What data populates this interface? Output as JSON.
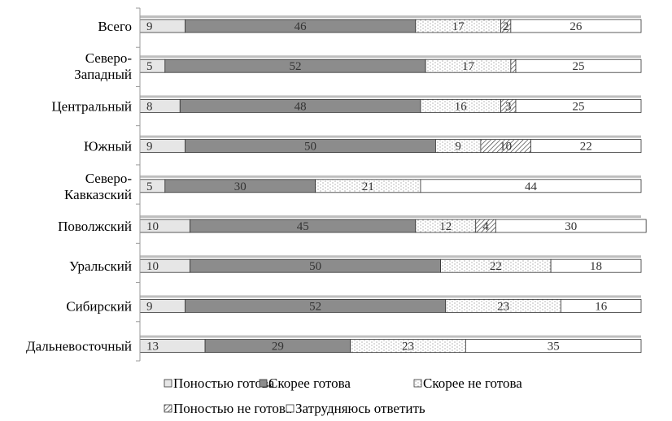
{
  "chart_data": {
    "type": "bar",
    "orientation": "horizontal",
    "stacked": "percent",
    "categories": [
      [
        "Всего"
      ],
      [
        "Северо-",
        "Западный"
      ],
      [
        "Центральный"
      ],
      [
        "Южный"
      ],
      [
        "Северо-",
        "Кавказский"
      ],
      [
        "Поволжский"
      ],
      [
        "Уральский"
      ],
      [
        "Сибирский"
      ],
      [
        "Дальневосточный"
      ]
    ],
    "series": [
      {
        "name": "Поностью готова",
        "pattern": "light",
        "values": [
          9,
          5,
          8,
          9,
          5,
          10,
          10,
          9,
          13
        ],
        "labels": [
          "9",
          "5",
          "8",
          "9",
          "5",
          "10",
          "10",
          "9",
          "13"
        ]
      },
      {
        "name": "Скорее готова",
        "pattern": "dark",
        "values": [
          46,
          52,
          48,
          50,
          30,
          45,
          50,
          52,
          29
        ],
        "labels": [
          "46",
          "52",
          "48",
          "50",
          "30",
          "45",
          "50",
          "52",
          "29"
        ]
      },
      {
        "name": "Скорее не готова",
        "pattern": "dots",
        "values": [
          17,
          17,
          16,
          9,
          21,
          12,
          22,
          23,
          23
        ],
        "labels": [
          "17",
          "17",
          "16",
          "9",
          "21",
          "12",
          "22",
          "23",
          "23"
        ]
      },
      {
        "name": "Поностью не готова",
        "pattern": "hatch",
        "values": [
          2,
          1,
          3,
          10,
          0,
          4,
          0,
          0,
          0
        ],
        "labels": [
          "2",
          "",
          "3",
          "10",
          "",
          "4",
          "",
          "",
          ""
        ]
      },
      {
        "name": "Затрудняюсь ответить",
        "pattern": "white",
        "values": [
          26,
          25,
          25,
          22,
          44,
          30,
          18,
          16,
          35
        ],
        "labels": [
          "26",
          "25",
          "25",
          "22",
          "44",
          "30",
          "18",
          "16",
          "35"
        ]
      }
    ],
    "xlim": [
      0,
      100
    ],
    "grid": false,
    "legend_position": "bottom"
  },
  "colors": {
    "light": "#e6e6e6",
    "dark": "#8c8c8c",
    "dots": "#ffffff",
    "hatch": "#ffffff",
    "white": "#ffffff",
    "edge": "#333333",
    "axis": "#9a9a9a",
    "shadow": "#bfbfbf"
  }
}
